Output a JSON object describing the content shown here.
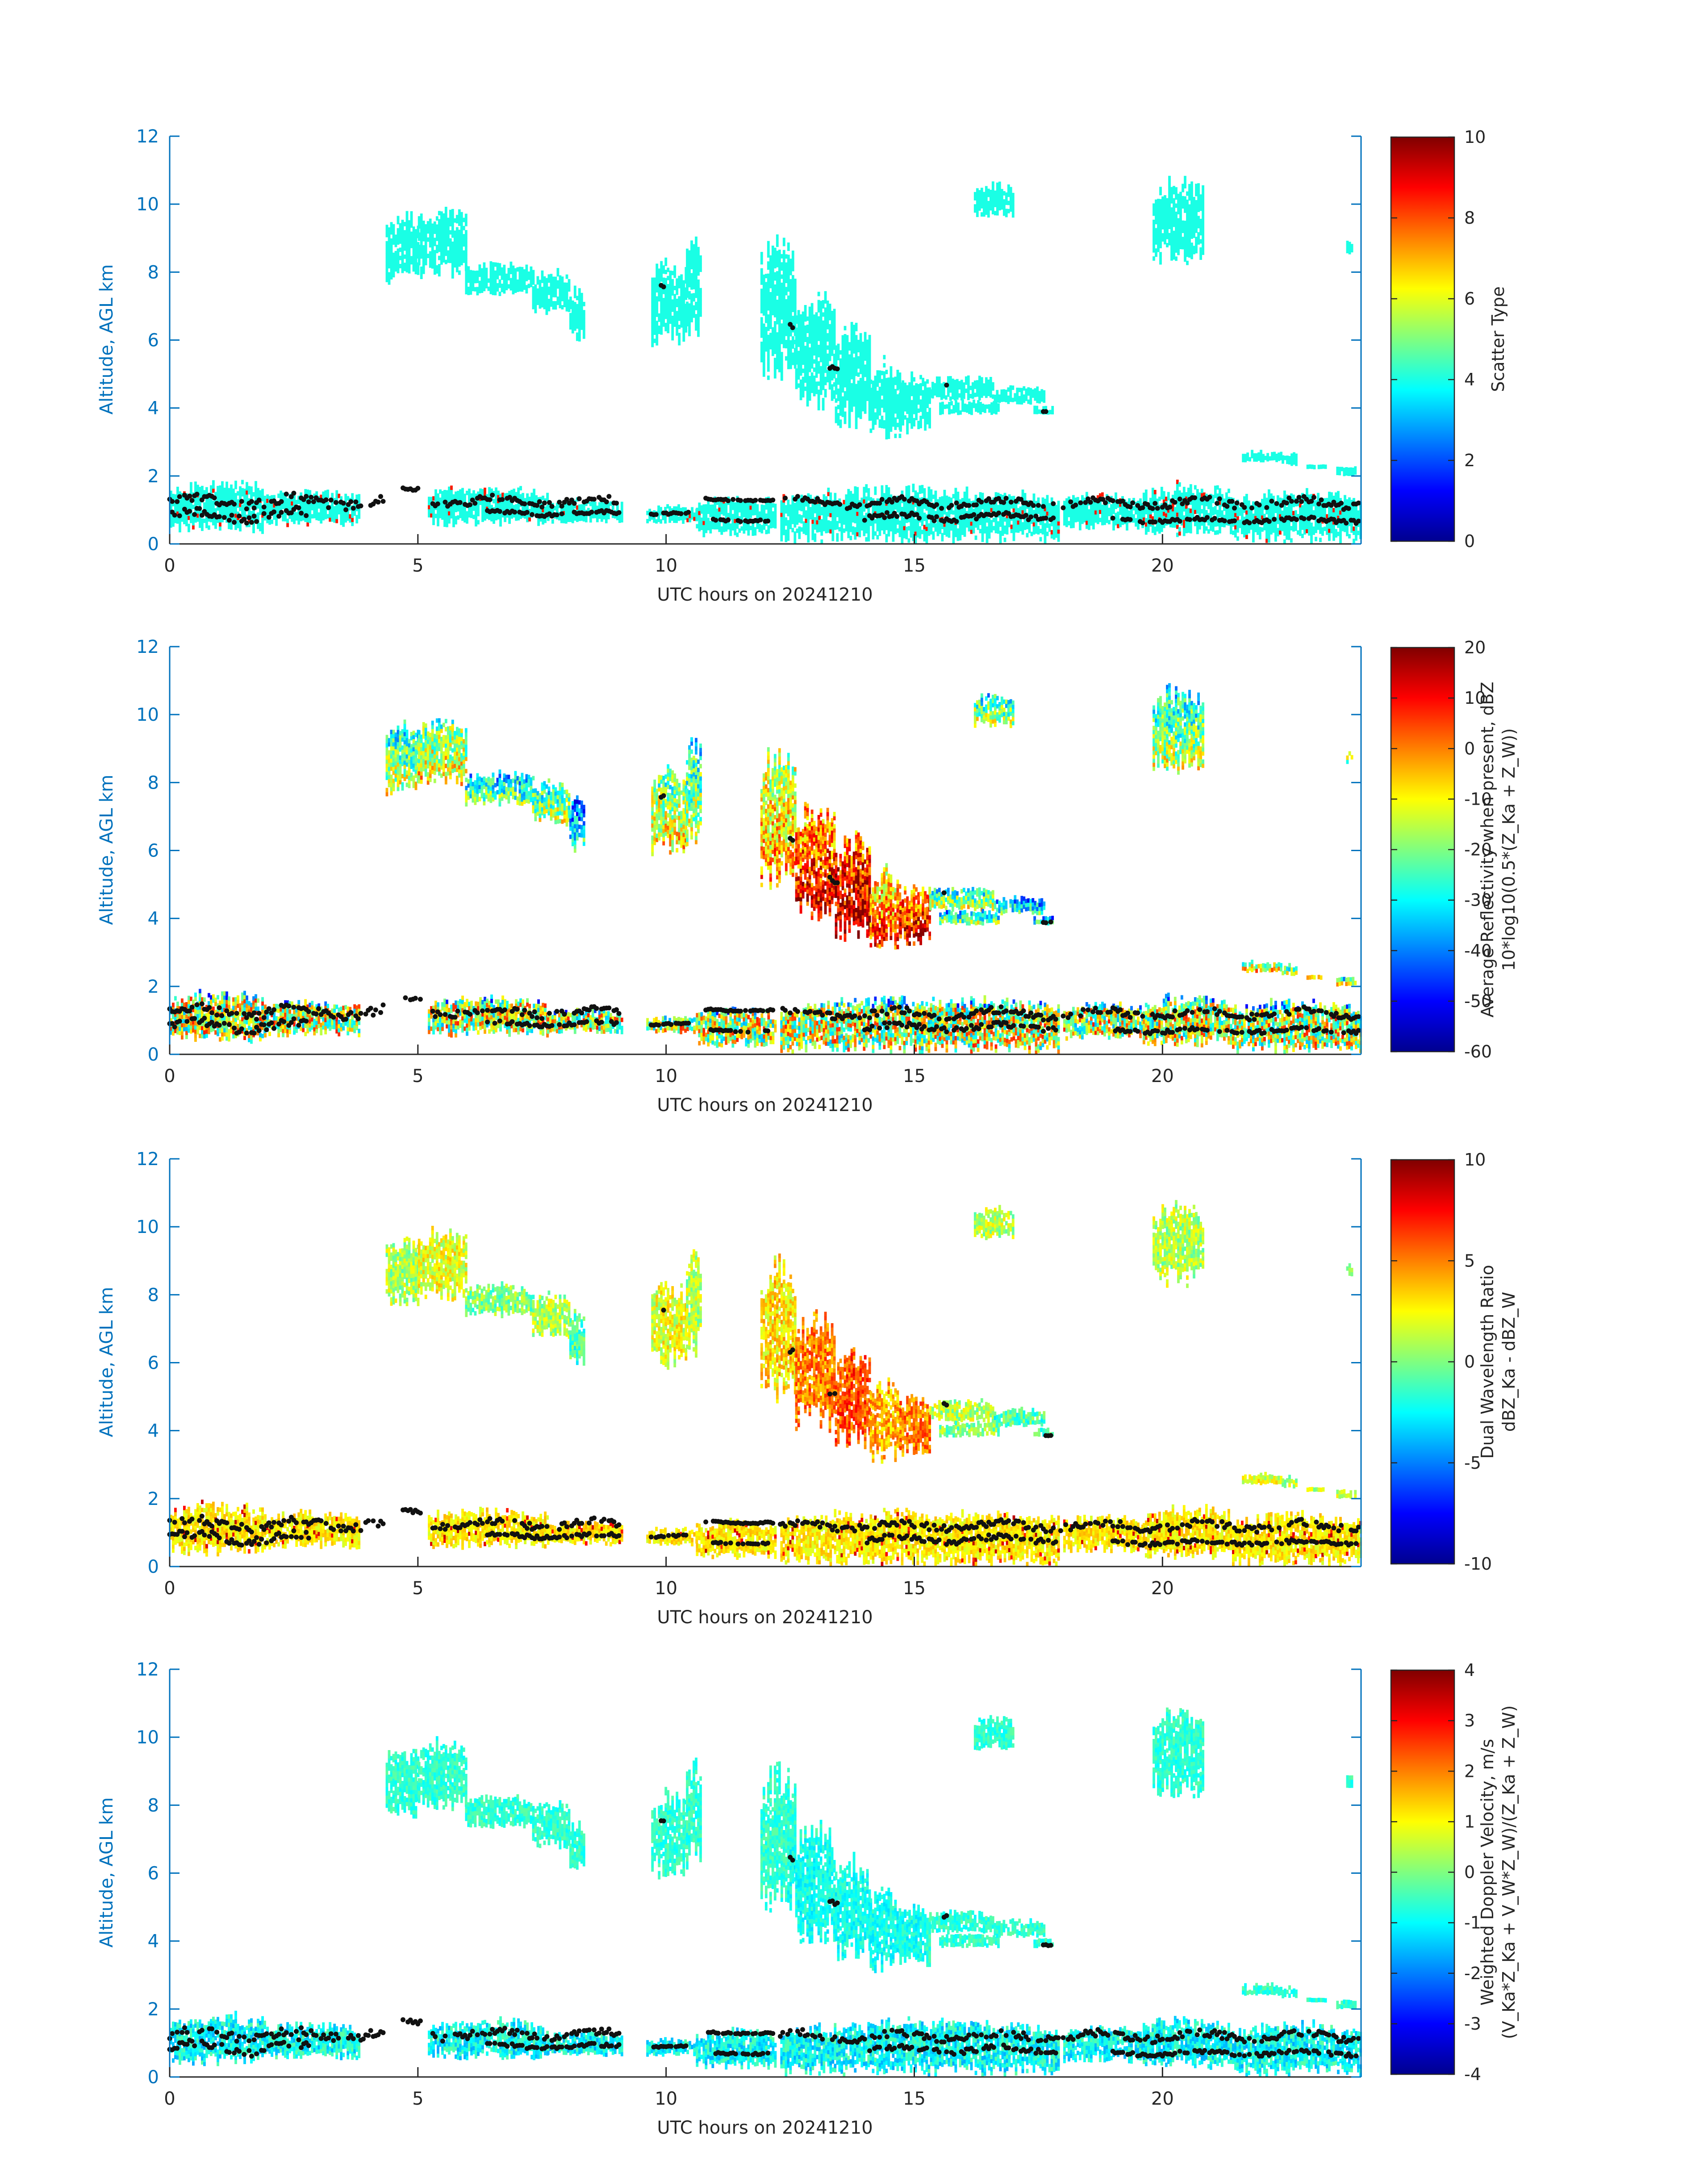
{
  "colors": {
    "axis": "#0072bd",
    "dots": "#111111"
  },
  "chart_data": [
    {
      "type": "heatmap",
      "title": "",
      "xlabel": "UTC hours on 20241210",
      "ylabel": "Altitude, AGL km",
      "xlim": [
        0,
        24
      ],
      "ylim": [
        0,
        12
      ],
      "x_ticks": [
        "0",
        "5",
        "10",
        "15",
        "20"
      ],
      "y_ticks": [
        "0",
        "2",
        "4",
        "6",
        "8",
        "10",
        "12"
      ],
      "colorbar": {
        "label": [
          "Scatter Type"
        ],
        "range": [
          0,
          10
        ],
        "ticks": [
          "0",
          "2",
          "4",
          "6",
          "8",
          "10"
        ],
        "colormap": "jet"
      },
      "field_value": 4
    },
    {
      "type": "heatmap",
      "title": "",
      "xlabel": "UTC hours on 20241210",
      "ylabel": "Altitude, AGL km",
      "xlim": [
        0,
        24
      ],
      "ylim": [
        0,
        12
      ],
      "x_ticks": [
        "0",
        "5",
        "10",
        "15",
        "20"
      ],
      "y_ticks": [
        "0",
        "2",
        "4",
        "6",
        "8",
        "10",
        "12"
      ],
      "colorbar": {
        "label": [
          "Average Reflectivity when present, dBZ",
          "10*log10(0.5*(Z_Ka + Z_W))"
        ],
        "range": [
          -60,
          20
        ],
        "ticks": [
          "-60",
          "-50",
          "-40",
          "-30",
          "-20",
          "-10",
          "0",
          "10",
          "20"
        ],
        "colormap": "jet"
      }
    },
    {
      "type": "heatmap",
      "title": "",
      "xlabel": "UTC hours on 20241210",
      "ylabel": "Altitude, AGL km",
      "xlim": [
        0,
        24
      ],
      "ylim": [
        0,
        12
      ],
      "x_ticks": [
        "0",
        "5",
        "10",
        "15",
        "20"
      ],
      "y_ticks": [
        "0",
        "2",
        "4",
        "6",
        "8",
        "10",
        "12"
      ],
      "colorbar": {
        "label": [
          "Dual Wavelength Ratio",
          "dBZ_Ka - dBZ_W"
        ],
        "range": [
          -10,
          10
        ],
        "ticks": [
          "-10",
          "-5",
          "0",
          "5",
          "10"
        ],
        "colormap": "jet"
      }
    },
    {
      "type": "heatmap",
      "title": "",
      "xlabel": "UTC hours on 20241210",
      "ylabel": "Altitude, AGL km",
      "xlim": [
        0,
        24
      ],
      "ylim": [
        0,
        12
      ],
      "x_ticks": [
        "0",
        "5",
        "10",
        "15",
        "20"
      ],
      "y_ticks": [
        "0",
        "2",
        "4",
        "6",
        "8",
        "10",
        "12"
      ],
      "colorbar": {
        "label": [
          "Weighted Doppler Velocity, m/s",
          "(V_Ka*Z_Ka + V_W*Z_W)/(Z_Ka + Z_W)"
        ],
        "range": [
          -4,
          4
        ],
        "ticks": [
          "-4",
          "-3",
          "-2",
          "-1",
          "0",
          "1",
          "2",
          "3",
          "4"
        ],
        "colormap": "jet"
      }
    }
  ]
}
